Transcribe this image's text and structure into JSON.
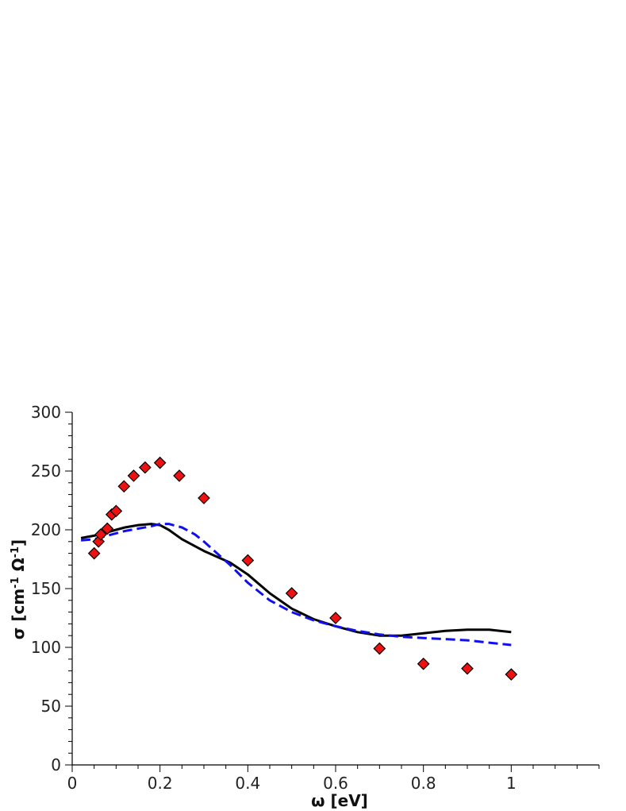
{
  "chart_data": {
    "type": "scatter",
    "xlabel": "ω [eV]",
    "ylabel_parts": {
      "main": "σ [cm",
      "sup1": "-1",
      "mid": " Ω",
      "sup2": "-1",
      "end": "]"
    },
    "xlim": [
      0,
      1.2
    ],
    "ylim": [
      0,
      300
    ],
    "x_ticks": [
      0,
      0.2,
      0.4,
      0.6,
      0.8,
      1
    ],
    "x_tick_labels": [
      "0",
      "0.2",
      "0.4",
      "0.6",
      "0.8",
      "1"
    ],
    "y_ticks": [
      0,
      50,
      100,
      150,
      200,
      250,
      300
    ],
    "y_tick_labels": [
      "0",
      "50",
      "100",
      "150",
      "200",
      "250",
      "300"
    ],
    "grid": false,
    "series": [
      {
        "kind": "line",
        "style": "solid",
        "color": "#000000",
        "x": [
          0.02,
          0.05,
          0.08,
          0.1,
          0.12,
          0.15,
          0.18,
          0.2,
          0.22,
          0.25,
          0.28,
          0.3,
          0.33,
          0.36,
          0.4,
          0.45,
          0.5,
          0.55,
          0.6,
          0.65,
          0.7,
          0.75,
          0.8,
          0.85,
          0.9,
          0.95,
          1.0
        ],
        "y": [
          193,
          195,
          198,
          200,
          202,
          204,
          205,
          204,
          200,
          192,
          186,
          182,
          177,
          172,
          162,
          146,
          133,
          124,
          118,
          113,
          110,
          110,
          112,
          114,
          115,
          115,
          113
        ]
      },
      {
        "kind": "line",
        "style": "dashed",
        "color": "#1010ee",
        "x": [
          0.02,
          0.05,
          0.08,
          0.1,
          0.12,
          0.15,
          0.18,
          0.2,
          0.22,
          0.25,
          0.28,
          0.3,
          0.33,
          0.36,
          0.4,
          0.45,
          0.5,
          0.55,
          0.6,
          0.65,
          0.7,
          0.75,
          0.8,
          0.85,
          0.9,
          0.95,
          1.0
        ],
        "y": [
          191,
          192,
          195,
          197,
          199,
          201,
          203,
          205,
          205,
          202,
          196,
          190,
          180,
          170,
          155,
          140,
          130,
          123,
          118,
          114,
          111,
          109,
          108,
          107,
          106,
          104,
          102
        ]
      },
      {
        "kind": "points",
        "marker": "diamond",
        "color": "#ee1111",
        "stroke": "#000000",
        "x": [
          0.05,
          0.06,
          0.065,
          0.08,
          0.09,
          0.1,
          0.118,
          0.14,
          0.166,
          0.2,
          0.244,
          0.3,
          0.4,
          0.5,
          0.6,
          0.7,
          0.8,
          0.9,
          1.0
        ],
        "y": [
          180,
          190,
          196,
          201,
          213,
          216,
          237,
          246,
          253,
          257,
          246,
          227,
          174,
          146,
          125,
          99,
          86,
          82,
          77
        ]
      }
    ]
  }
}
